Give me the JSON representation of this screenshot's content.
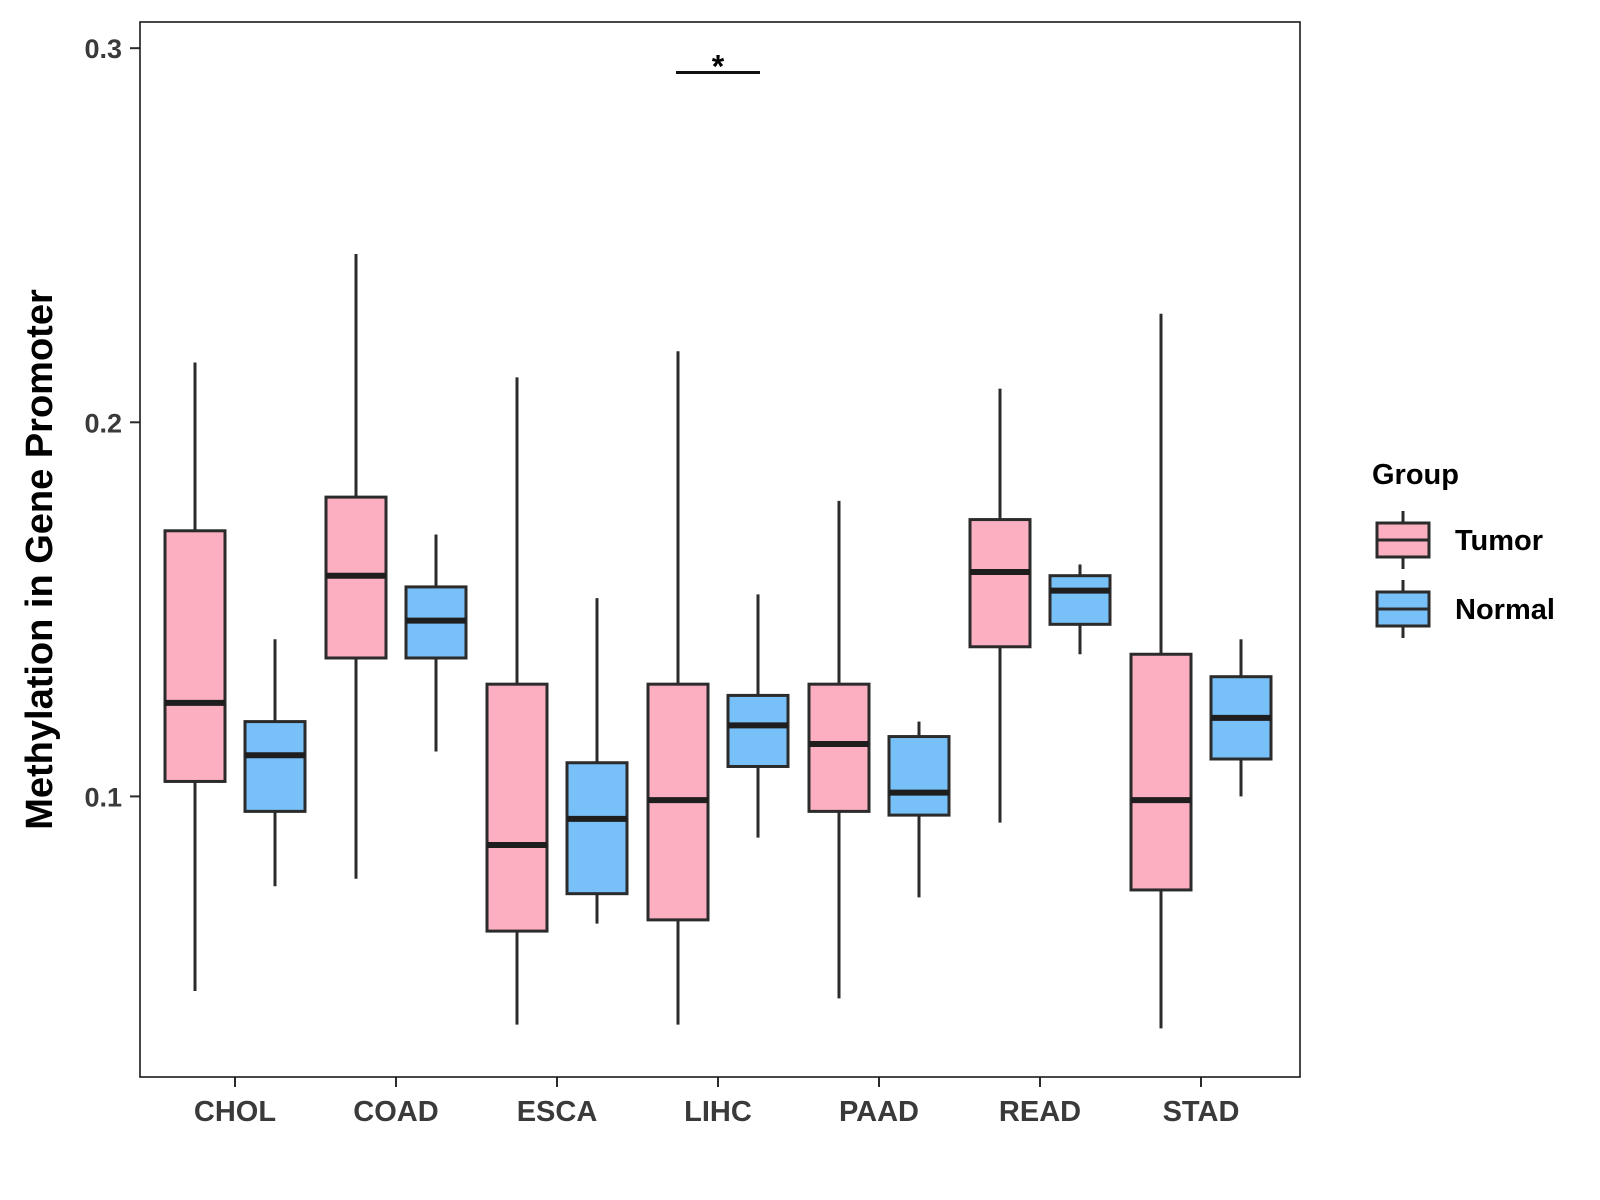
{
  "chart_data": {
    "type": "boxplot",
    "title": "",
    "xlabel": "",
    "ylabel": "Methylation in Gene Promoter",
    "ylim": [
      0.025,
      0.307
    ],
    "yticks": [
      0.1,
      0.2,
      0.3
    ],
    "ytick_labels": [
      "0.1",
      "0.2",
      "0.3"
    ],
    "categories": [
      "CHOL",
      "COAD",
      "ESCA",
      "LIHC",
      "PAAD",
      "READ",
      "STAD"
    ],
    "legend": {
      "title": "Group",
      "position": "right",
      "entries": [
        {
          "name": "Tumor",
          "color": "#FBAFC0"
        },
        {
          "name": "Normal",
          "color": "#78C0F8"
        }
      ]
    },
    "series": [
      {
        "name": "Tumor",
        "color": "#FBAFC0",
        "boxes": [
          {
            "min": 0.048,
            "q1": 0.104,
            "median": 0.125,
            "q3": 0.171,
            "max": 0.216
          },
          {
            "min": 0.078,
            "q1": 0.137,
            "median": 0.159,
            "q3": 0.18,
            "max": 0.245
          },
          {
            "min": 0.039,
            "q1": 0.064,
            "median": 0.087,
            "q3": 0.13,
            "max": 0.212
          },
          {
            "min": 0.039,
            "q1": 0.067,
            "median": 0.099,
            "q3": 0.13,
            "max": 0.219
          },
          {
            "min": 0.046,
            "q1": 0.096,
            "median": 0.114,
            "q3": 0.13,
            "max": 0.179
          },
          {
            "min": 0.093,
            "q1": 0.14,
            "median": 0.16,
            "q3": 0.174,
            "max": 0.209
          },
          {
            "min": 0.038,
            "q1": 0.075,
            "median": 0.099,
            "q3": 0.138,
            "max": 0.229
          }
        ]
      },
      {
        "name": "Normal",
        "color": "#78C0F8",
        "boxes": [
          {
            "min": 0.076,
            "q1": 0.096,
            "median": 0.111,
            "q3": 0.12,
            "max": 0.142
          },
          {
            "min": 0.112,
            "q1": 0.137,
            "median": 0.147,
            "q3": 0.156,
            "max": 0.17
          },
          {
            "min": 0.066,
            "q1": 0.074,
            "median": 0.094,
            "q3": 0.109,
            "max": 0.153
          },
          {
            "min": 0.089,
            "q1": 0.108,
            "median": 0.119,
            "q3": 0.127,
            "max": 0.154
          },
          {
            "min": 0.073,
            "q1": 0.095,
            "median": 0.101,
            "q3": 0.116,
            "max": 0.12
          },
          {
            "min": 0.138,
            "q1": 0.146,
            "median": 0.155,
            "q3": 0.159,
            "max": 0.162
          },
          {
            "min": 0.1,
            "q1": 0.11,
            "median": 0.121,
            "q3": 0.132,
            "max": 0.142
          }
        ]
      }
    ],
    "annotations": [
      {
        "category": "LIHC",
        "label": "*",
        "y": 0.2935
      }
    ]
  }
}
